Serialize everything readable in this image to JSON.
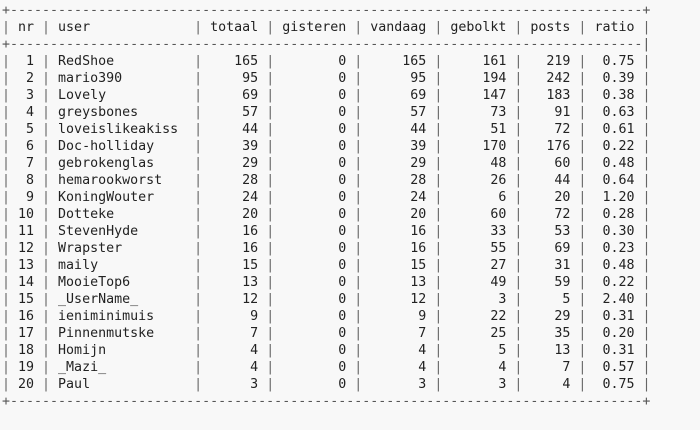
{
  "columns": [
    {
      "key": "nr",
      "label": "nr",
      "width": 2,
      "align": "r"
    },
    {
      "key": "user",
      "label": "user",
      "width": 16,
      "align": "l"
    },
    {
      "key": "totaal",
      "label": "totaal",
      "width": 6,
      "align": "r"
    },
    {
      "key": "gisteren",
      "label": "gisteren",
      "width": 8,
      "align": "r"
    },
    {
      "key": "vandaag",
      "label": "vandaag",
      "width": 7,
      "align": "r"
    },
    {
      "key": "gebolkt",
      "label": "gebolkt",
      "width": 7,
      "align": "r"
    },
    {
      "key": "posts",
      "label": "posts",
      "width": 5,
      "align": "r"
    },
    {
      "key": "ratio",
      "label": "ratio",
      "width": 5,
      "align": "r"
    }
  ],
  "rows": [
    {
      "nr": "1",
      "user": "RedShoe",
      "totaal": "165",
      "gisteren": "0",
      "vandaag": "165",
      "gebolkt": "161",
      "posts": "219",
      "ratio": "0.75"
    },
    {
      "nr": "2",
      "user": "mario390",
      "totaal": "95",
      "gisteren": "0",
      "vandaag": "95",
      "gebolkt": "194",
      "posts": "242",
      "ratio": "0.39"
    },
    {
      "nr": "3",
      "user": "Lovely",
      "totaal": "69",
      "gisteren": "0",
      "vandaag": "69",
      "gebolkt": "147",
      "posts": "183",
      "ratio": "0.38"
    },
    {
      "nr": "4",
      "user": "greysbones",
      "totaal": "57",
      "gisteren": "0",
      "vandaag": "57",
      "gebolkt": "73",
      "posts": "91",
      "ratio": "0.63"
    },
    {
      "nr": "5",
      "user": "loveislikeakiss",
      "totaal": "44",
      "gisteren": "0",
      "vandaag": "44",
      "gebolkt": "51",
      "posts": "72",
      "ratio": "0.61"
    },
    {
      "nr": "6",
      "user": "Doc-holliday",
      "totaal": "39",
      "gisteren": "0",
      "vandaag": "39",
      "gebolkt": "170",
      "posts": "176",
      "ratio": "0.22"
    },
    {
      "nr": "7",
      "user": "gebrokenglas",
      "totaal": "29",
      "gisteren": "0",
      "vandaag": "29",
      "gebolkt": "48",
      "posts": "60",
      "ratio": "0.48"
    },
    {
      "nr": "8",
      "user": "hemarookworst",
      "totaal": "28",
      "gisteren": "0",
      "vandaag": "28",
      "gebolkt": "26",
      "posts": "44",
      "ratio": "0.64"
    },
    {
      "nr": "9",
      "user": "KoningWouter",
      "totaal": "24",
      "gisteren": "0",
      "vandaag": "24",
      "gebolkt": "6",
      "posts": "20",
      "ratio": "1.20"
    },
    {
      "nr": "10",
      "user": "Dotteke",
      "totaal": "20",
      "gisteren": "0",
      "vandaag": "20",
      "gebolkt": "60",
      "posts": "72",
      "ratio": "0.28"
    },
    {
      "nr": "11",
      "user": "StevenHyde",
      "totaal": "16",
      "gisteren": "0",
      "vandaag": "16",
      "gebolkt": "33",
      "posts": "53",
      "ratio": "0.30"
    },
    {
      "nr": "12",
      "user": "Wrapster",
      "totaal": "16",
      "gisteren": "0",
      "vandaag": "16",
      "gebolkt": "55",
      "posts": "69",
      "ratio": "0.23"
    },
    {
      "nr": "13",
      "user": "maily",
      "totaal": "15",
      "gisteren": "0",
      "vandaag": "15",
      "gebolkt": "27",
      "posts": "31",
      "ratio": "0.48"
    },
    {
      "nr": "14",
      "user": "MooieTop6",
      "totaal": "13",
      "gisteren": "0",
      "vandaag": "13",
      "gebolkt": "49",
      "posts": "59",
      "ratio": "0.22"
    },
    {
      "nr": "15",
      "user": "_UserName_",
      "totaal": "12",
      "gisteren": "0",
      "vandaag": "12",
      "gebolkt": "3",
      "posts": "5",
      "ratio": "2.40"
    },
    {
      "nr": "16",
      "user": "ieniminimuis",
      "totaal": "9",
      "gisteren": "0",
      "vandaag": "9",
      "gebolkt": "22",
      "posts": "29",
      "ratio": "0.31"
    },
    {
      "nr": "17",
      "user": "Pinnenmutske",
      "totaal": "7",
      "gisteren": "0",
      "vandaag": "7",
      "gebolkt": "25",
      "posts": "35",
      "ratio": "0.20"
    },
    {
      "nr": "18",
      "user": "Homijn",
      "totaal": "4",
      "gisteren": "0",
      "vandaag": "4",
      "gebolkt": "5",
      "posts": "13",
      "ratio": "0.31"
    },
    {
      "nr": "19",
      "user": "_Mazi_",
      "totaal": "4",
      "gisteren": "0",
      "vandaag": "4",
      "gebolkt": "4",
      "posts": "7",
      "ratio": "0.57"
    },
    {
      "nr": "20",
      "user": "Paul",
      "totaal": "3",
      "gisteren": "0",
      "vandaag": "3",
      "gebolkt": "3",
      "posts": "4",
      "ratio": "0.75"
    }
  ]
}
